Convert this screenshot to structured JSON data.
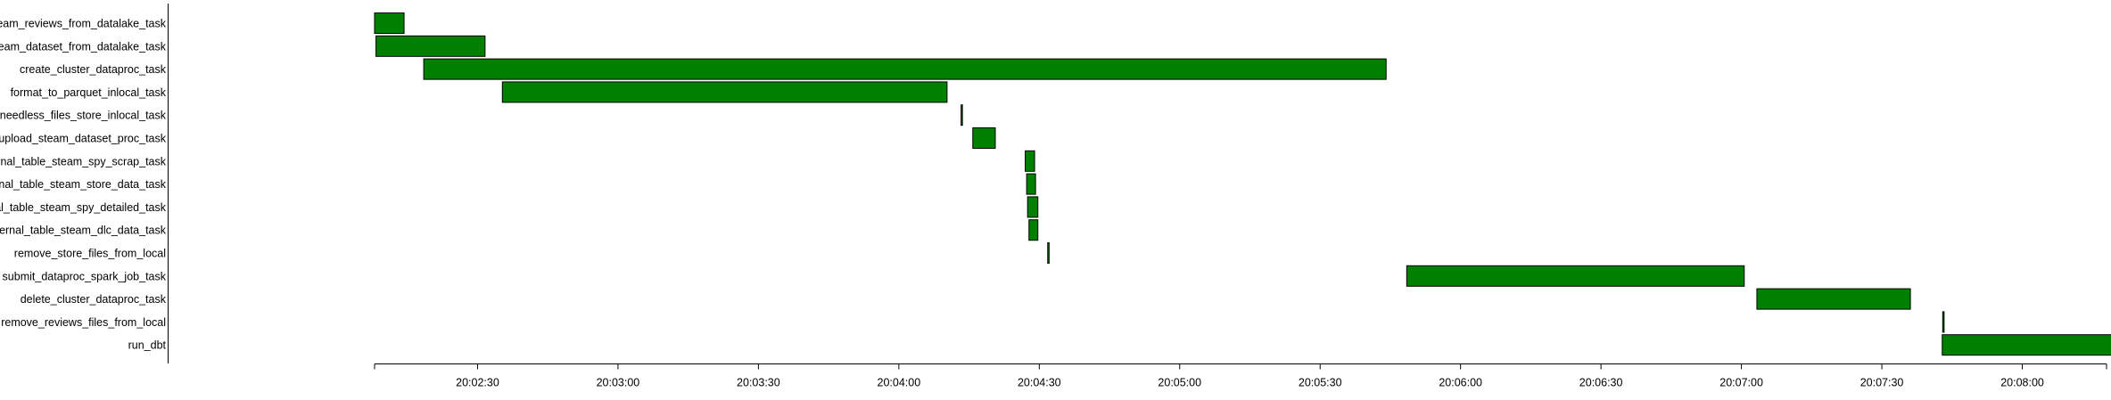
{
  "chart_data": {
    "type": "gantt",
    "x_axis": {
      "type": "time",
      "min": "20:02:08",
      "max": "20:08:18",
      "tick_labels": [
        "20:02:30",
        "20:03:00",
        "20:03:30",
        "20:04:00",
        "20:04:30",
        "20:05:00",
        "20:05:30",
        "20:06:00",
        "20:06:30",
        "20:07:00",
        "20:07:30",
        "20:08:00"
      ]
    },
    "bar_color": "#008000",
    "tasks": [
      {
        "label": "steam_reviews_from_datalake_task",
        "start": "20:02:08.0",
        "end": "20:02:14.3"
      },
      {
        "label": "steam_dataset_from_datalake_task",
        "start": "20:02:08.3",
        "end": "20:02:31.6"
      },
      {
        "label": "create_cluster_dataproc_task",
        "start": "20:02:18.5",
        "end": "20:05:44.1"
      },
      {
        "label": "format_to_parquet_inlocal_task",
        "start": "20:02:35.3",
        "end": "20:04:10.3"
      },
      {
        "label": "delete_needless_files_store_inlocal_task",
        "start": "20:04:13.3",
        "end": "20:04:13.5"
      },
      {
        "label": "upload_steam_dataset_proc_task",
        "start": "20:04:15.8",
        "end": "20:04:20.6"
      },
      {
        "label": "external_table_steam_spy_scrap_task",
        "start": "20:04:27.0",
        "end": "20:04:29.0"
      },
      {
        "label": "external_table_steam_store_data_task",
        "start": "20:04:27.3",
        "end": "20:04:29.2"
      },
      {
        "label": "external_table_steam_spy_detailed_task",
        "start": "20:04:27.5",
        "end": "20:04:29.7"
      },
      {
        "label": "external_table_steam_dlc_data_task",
        "start": "20:04:27.8",
        "end": "20:04:29.7"
      },
      {
        "label": "remove_store_files_from_local",
        "start": "20:04:31.8",
        "end": "20:04:32.1"
      },
      {
        "label": "submit_dataproc_spark_job_task",
        "start": "20:05:48.5",
        "end": "20:07:00.6"
      },
      {
        "label": "delete_cluster_dataproc_task",
        "start": "20:07:03.3",
        "end": "20:07:36.1"
      },
      {
        "label": "remove_reviews_files_from_local",
        "start": "20:07:43.0",
        "end": "20:07:43.3"
      },
      {
        "label": "run_dbt",
        "start": "20:07:42.9",
        "end": "20:08:20.2"
      }
    ]
  }
}
